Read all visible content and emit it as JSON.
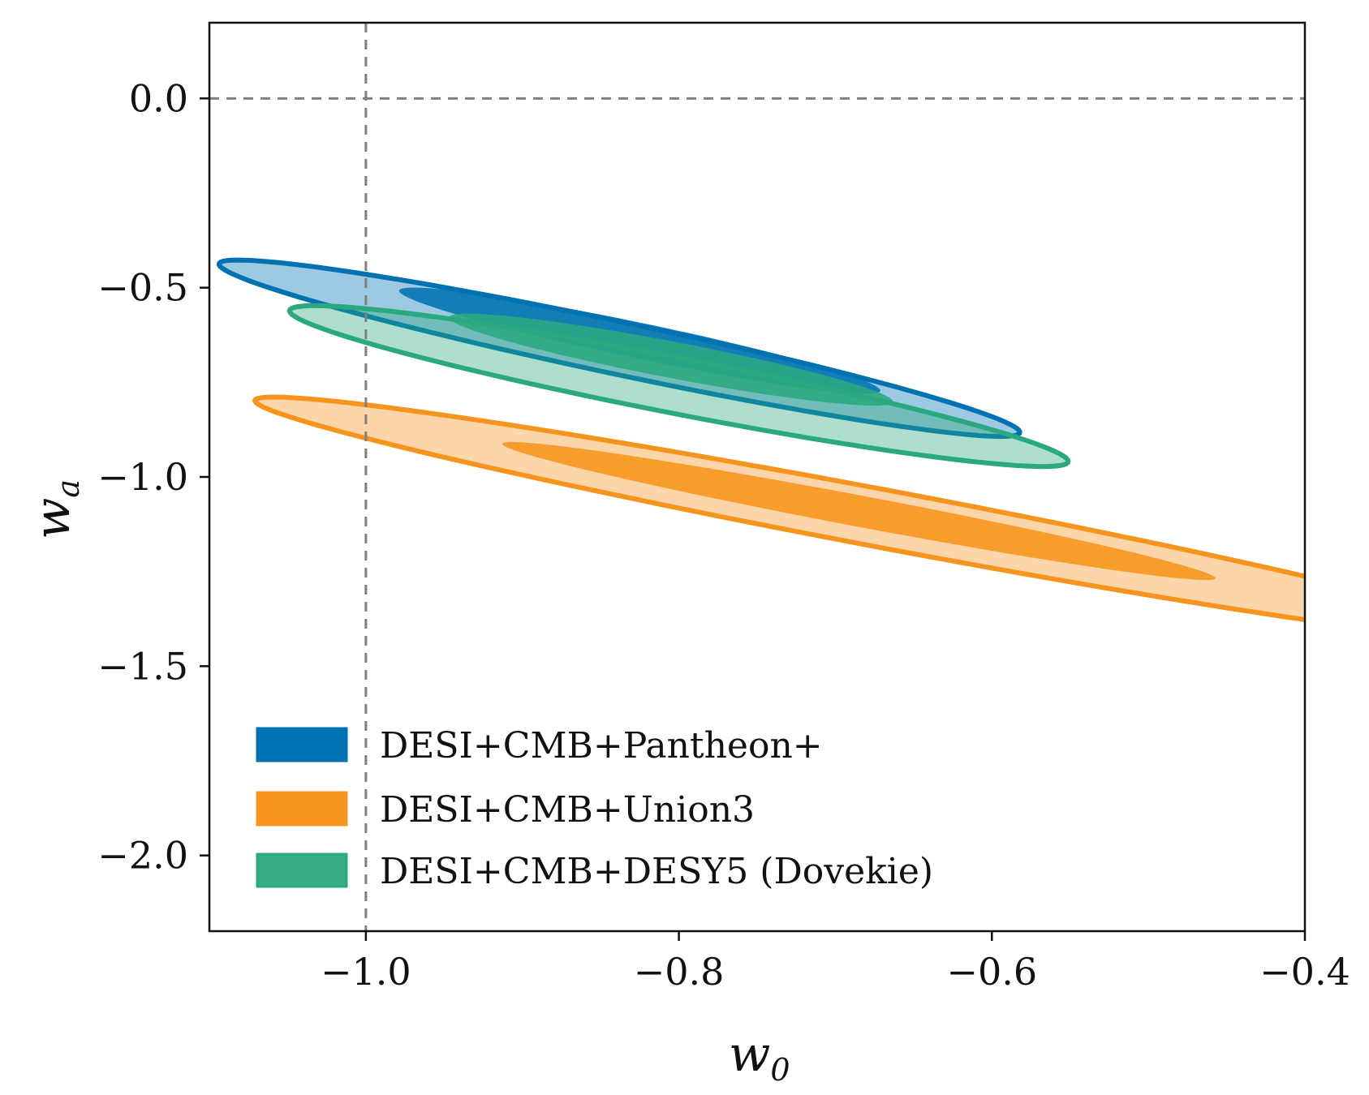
{
  "chart_data": {
    "type": "contour",
    "xlabel": "w",
    "xlabel_sub": "0",
    "ylabel": "w",
    "ylabel_sub": "a",
    "xlim": [
      -1.1,
      -0.4
    ],
    "ylim": [
      -2.2,
      0.2
    ],
    "xticks": [
      -1.0,
      -0.8,
      -0.6,
      -0.4
    ],
    "xtick_labels": [
      "−1.0",
      "−0.8",
      "−0.6",
      "−0.4"
    ],
    "yticks": [
      0.0,
      -0.5,
      -1.0,
      -1.5,
      -2.0
    ],
    "ytick_labels": [
      "0.0",
      "−0.5",
      "−1.0",
      "−1.5",
      "−2.0"
    ],
    "reference_lines": {
      "vertical_x": -1.0,
      "horizontal_y": 0.0,
      "style": "dashed",
      "color": "#808080"
    },
    "legend_position": "bottom-left",
    "series": [
      {
        "name": "DESI+CMB+Union3",
        "color": "#f7941d",
        "contours": {
          "inner": {
            "center": [
              -0.685,
              -1.09
            ],
            "angle_deg": 38.5,
            "half_major": 0.29,
            "half_minor": 0.033
          },
          "outer": {
            "center": [
              -0.67,
              -1.11
            ],
            "angle_deg": 38.5,
            "half_major": 0.51,
            "half_minor": 0.061
          }
        }
      },
      {
        "name": "DESI+CMB+Pantheon+",
        "color": "#0072b2",
        "contours": {
          "inner": {
            "center": [
              -0.825,
              -0.64
            ],
            "angle_deg": 42.2,
            "half_major": 0.205,
            "half_minor": 0.036
          },
          "outer": {
            "center": [
              -0.838,
              -0.66
            ],
            "angle_deg": 42.2,
            "half_major": 0.342,
            "half_minor": 0.053
          }
        }
      },
      {
        "name": "DESI+CMB+DESY5 (Dovekie)",
        "color": "#2aa87f",
        "contours": {
          "inner": {
            "center": [
              -0.805,
              -0.69
            ],
            "angle_deg": 40.2,
            "half_major": 0.183,
            "half_minor": 0.038
          },
          "outer": {
            "center": [
              -0.8,
              -0.76
            ],
            "angle_deg": 40.2,
            "half_major": 0.322,
            "half_minor": 0.058
          }
        }
      }
    ],
    "legend_entries": [
      {
        "label": "DESI+CMB+Pantheon+",
        "color": "#0072b2"
      },
      {
        "label": "DESI+CMB+Union3",
        "color": "#f7941d"
      },
      {
        "label": "DESI+CMB+DESY5 (Dovekie)",
        "color": "#2aa87f"
      }
    ]
  }
}
